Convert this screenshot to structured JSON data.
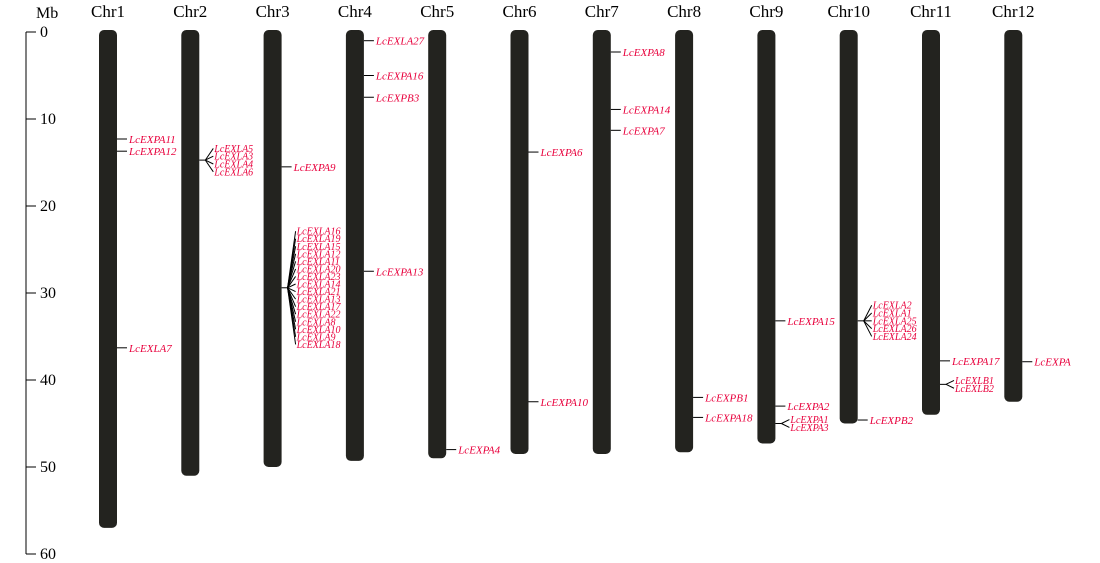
{
  "axis": {
    "unit": "Mb",
    "min": 0,
    "max": 60,
    "ticks": [
      0,
      10,
      20,
      30,
      40,
      50,
      60
    ]
  },
  "colors": {
    "chromosome": "#23231f",
    "gene_label": "#e8003c",
    "line": "#000000"
  },
  "chromosomes": [
    {
      "name": "Chr1",
      "length": 57.0,
      "genes": [
        {
          "name": "LcEXPA11",
          "pos": 12.3
        },
        {
          "name": "LcEXPA12",
          "pos": 13.7
        },
        {
          "name": "LcEXLA7",
          "pos": 36.3
        }
      ]
    },
    {
      "name": "Chr2",
      "length": 51.0,
      "genes": [
        {
          "name": "LcEXLA5",
          "pos": 14.5
        },
        {
          "name": "LcEXLA3",
          "pos": 14.6
        },
        {
          "name": "LcEXLA4",
          "pos": 14.8
        },
        {
          "name": "LcEXLA6",
          "pos": 15.0
        }
      ]
    },
    {
      "name": "Chr3",
      "length": 50.0,
      "genes": [
        {
          "name": "LcEXPA9",
          "pos": 15.5
        },
        {
          "name": "LcEXLA16",
          "pos": 29.0
        },
        {
          "name": "LcEXLA19",
          "pos": 29.1
        },
        {
          "name": "LcEXLA15",
          "pos": 29.1
        },
        {
          "name": "LcEXLA12",
          "pos": 29.2
        },
        {
          "name": "LcEXLA11",
          "pos": 29.2
        },
        {
          "name": "LcEXLA20",
          "pos": 29.3
        },
        {
          "name": "LcEXLA23",
          "pos": 29.3
        },
        {
          "name": "LcEXLA14",
          "pos": 29.4
        },
        {
          "name": "LcEXLA21",
          "pos": 29.4
        },
        {
          "name": "LcEXLA13",
          "pos": 29.5
        },
        {
          "name": "LcEXLA17",
          "pos": 29.5
        },
        {
          "name": "LcEXLA22",
          "pos": 29.6
        },
        {
          "name": "LcEXLA8",
          "pos": 29.6
        },
        {
          "name": "LcEXLA10",
          "pos": 29.7
        },
        {
          "name": "LcEXLA9",
          "pos": 29.7
        },
        {
          "name": "LcEXLA18",
          "pos": 29.8
        }
      ]
    },
    {
      "name": "Chr4",
      "length": 49.3,
      "genes": [
        {
          "name": "LcEXLA27",
          "pos": 1.0
        },
        {
          "name": "LcEXPA16",
          "pos": 5.0
        },
        {
          "name": "LcEXPB3",
          "pos": 7.5
        },
        {
          "name": "LcEXPA13",
          "pos": 27.5
        }
      ]
    },
    {
      "name": "Chr5",
      "length": 49.0,
      "genes": [
        {
          "name": "LcEXPA4",
          "pos": 48.0
        }
      ]
    },
    {
      "name": "Chr6",
      "length": 48.5,
      "genes": [
        {
          "name": "LcEXPA6",
          "pos": 13.8
        },
        {
          "name": "LcEXPA10",
          "pos": 42.5
        }
      ]
    },
    {
      "name": "Chr7",
      "length": 48.5,
      "genes": [
        {
          "name": "LcEXPA8",
          "pos": 2.3
        },
        {
          "name": "LcEXPA14",
          "pos": 8.9
        },
        {
          "name": "LcEXPA7",
          "pos": 11.3
        }
      ]
    },
    {
      "name": "Chr8",
      "length": 48.3,
      "genes": [
        {
          "name": "LcEXPB1",
          "pos": 42.0
        },
        {
          "name": "LcEXPA18",
          "pos": 44.3
        }
      ]
    },
    {
      "name": "Chr9",
      "length": 47.3,
      "genes": [
        {
          "name": "LcEXPA15",
          "pos": 33.2
        },
        {
          "name": "LcEXPA2",
          "pos": 43.0
        },
        {
          "name": "LcEXPA1",
          "pos": 44.5
        },
        {
          "name": "LcEXPA3",
          "pos": 45.5
        }
      ]
    },
    {
      "name": "Chr10",
      "length": 45.0,
      "genes": [
        {
          "name": "LcEXLA2",
          "pos": 33.0
        },
        {
          "name": "LcEXLA1",
          "pos": 33.1
        },
        {
          "name": "LcEXLA25",
          "pos": 33.2
        },
        {
          "name": "LcEXLA26",
          "pos": 33.3
        },
        {
          "name": "LcEXLA24",
          "pos": 33.4
        },
        {
          "name": "LcEXPB2",
          "pos": 44.6
        }
      ]
    },
    {
      "name": "Chr11",
      "length": 44.0,
      "genes": [
        {
          "name": "LcEXPA17",
          "pos": 37.8
        },
        {
          "name": "LcEXLB1",
          "pos": 40.2
        },
        {
          "name": "LcEXLB2",
          "pos": 40.8
        }
      ]
    },
    {
      "name": "Chr12",
      "length": 42.5,
      "genes": [
        {
          "name": "LcEXPA",
          "pos": 37.9
        }
      ]
    }
  ]
}
